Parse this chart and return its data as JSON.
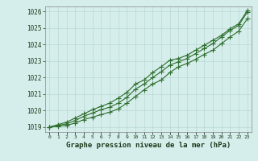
{
  "title": "Graphe pression niveau de la mer (hPa)",
  "hours": [
    0,
    1,
    2,
    3,
    4,
    5,
    6,
    7,
    8,
    9,
    10,
    11,
    12,
    13,
    14,
    15,
    16,
    17,
    18,
    19,
    20,
    21,
    22,
    23
  ],
  "ylim": [
    1018.7,
    1026.3
  ],
  "xlim": [
    -0.5,
    23.5
  ],
  "yticks": [
    1019,
    1020,
    1021,
    1022,
    1023,
    1024,
    1025,
    1026
  ],
  "bg_color": "#d6eeeb",
  "line_color": "#2d6e2d",
  "grid_color": "#b8d8d4",
  "line1": [
    1019.0,
    1019.05,
    1019.1,
    1019.25,
    1019.45,
    1019.6,
    1019.75,
    1019.9,
    1020.1,
    1020.45,
    1020.85,
    1021.25,
    1021.6,
    1021.85,
    1022.3,
    1022.65,
    1022.85,
    1023.1,
    1023.4,
    1023.65,
    1024.05,
    1024.45,
    1024.8,
    1025.55
  ],
  "line2": [
    1019.0,
    1019.1,
    1019.2,
    1019.4,
    1019.65,
    1019.85,
    1020.05,
    1020.2,
    1020.45,
    1020.8,
    1021.3,
    1021.6,
    1022.0,
    1022.35,
    1022.75,
    1022.95,
    1023.15,
    1023.45,
    1023.75,
    1024.05,
    1024.45,
    1024.85,
    1025.15,
    1025.95
  ],
  "line3": [
    1019.0,
    1019.15,
    1019.3,
    1019.55,
    1019.8,
    1020.05,
    1020.25,
    1020.45,
    1020.75,
    1021.1,
    1021.6,
    1021.85,
    1022.3,
    1022.65,
    1023.05,
    1023.15,
    1023.35,
    1023.65,
    1023.95,
    1024.25,
    1024.55,
    1024.95,
    1025.25,
    1026.05
  ]
}
